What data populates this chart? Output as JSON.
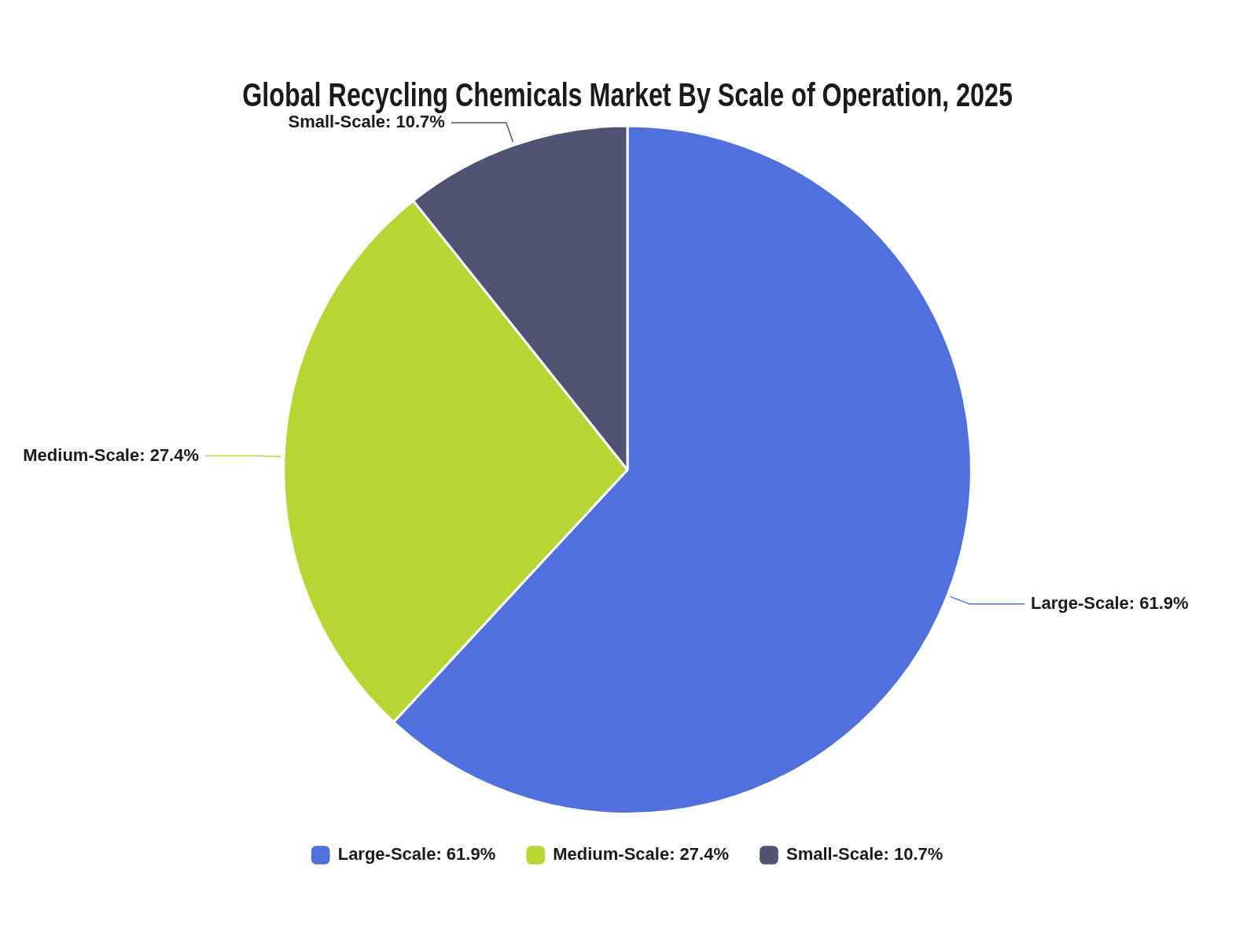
{
  "chart_data": {
    "type": "pie",
    "title": "Global Recycling Chemicals Market By Scale of Operation, 2025",
    "categories": [
      "Large-Scale: 61.9%",
      "Medium-Scale: 27.4%",
      "Small-Scale: 10.7%"
    ],
    "values": [
      61.9,
      27.4,
      10.7
    ],
    "colors": [
      "#5070dd",
      "#b6d634",
      "#505372"
    ],
    "legend": "bottom"
  }
}
